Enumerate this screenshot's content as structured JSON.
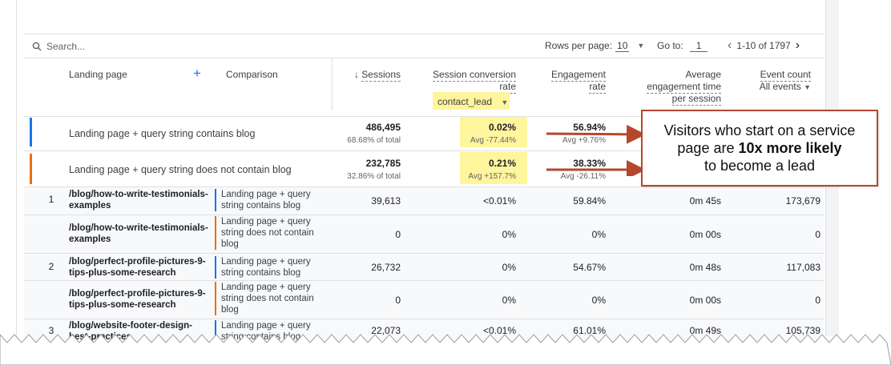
{
  "search": {
    "placeholder": "Search..."
  },
  "pagination": {
    "rows_label": "Rows per page:",
    "rows_value": "10",
    "goto_label": "Go to:",
    "goto_value": "1",
    "range": "1-10 of 1797"
  },
  "headers": {
    "landing_page": "Landing page",
    "add": "+",
    "comparison": "Comparison",
    "sort_arrow": "↓",
    "sessions": "Sessions",
    "conv_rate_line1": "Session conversion",
    "conv_rate_line2": "rate",
    "conv_event": "contact_lead",
    "engagement_line1": "Engagement",
    "engagement_line2": "rate",
    "avg_line1": "Average",
    "avg_line2": "engagement time",
    "avg_line3": "per session",
    "event_count": "Event count",
    "event_filter": "All events"
  },
  "summary_rows": [
    {
      "label": "Landing page + query string contains blog",
      "sessions": "486,495",
      "sessions_sub": "68.68% of total",
      "conv": "0.02%",
      "conv_sub": "Avg -77.44%",
      "eng": "56.94%",
      "eng_sub": "Avg +9.76%",
      "color": "#1a73e8"
    },
    {
      "label": "Landing page + query string does not contain blog",
      "sessions": "232,785",
      "sessions_sub": "32.86% of total",
      "conv": "0.21%",
      "conv_sub": "Avg +157.7%",
      "eng": "38.33%",
      "eng_sub": "Avg -26.11%",
      "color": "#e8710a"
    }
  ],
  "rows": [
    {
      "num": "1",
      "page": "/blog/how-to-write-testimonials-examples",
      "cmp": "Landing page + query string contains blog",
      "sessions": "39,613",
      "conv": "<0.01%",
      "eng": "59.84%",
      "time": "0m 45s",
      "events": "173,679"
    },
    {
      "num": "",
      "page": "/blog/how-to-write-testimonials-examples",
      "cmp": "Landing page + query string does not contain blog",
      "sessions": "0",
      "conv": "0%",
      "eng": "0%",
      "time": "0m 00s",
      "events": "0"
    },
    {
      "num": "2",
      "page": "/blog/perfect-profile-pictures-9-tips-plus-some-research",
      "cmp": "Landing page + query string contains blog",
      "sessions": "26,732",
      "conv": "0%",
      "eng": "54.67%",
      "time": "0m 48s",
      "events": "117,083"
    },
    {
      "num": "",
      "page": "/blog/perfect-profile-pictures-9-tips-plus-some-research",
      "cmp": "Landing page + query string does not contain blog",
      "sessions": "0",
      "conv": "0%",
      "eng": "0%",
      "time": "0m 00s",
      "events": "0"
    },
    {
      "num": "3",
      "page": "/blog/website-footer-design-best-practices",
      "cmp": "Landing page + query string contains blog",
      "sessions": "22,073",
      "conv": "<0.01%",
      "eng": "61.01%",
      "time": "0m 49s",
      "events": "105,739"
    }
  ],
  "callout": {
    "line1": "Visitors who start on a service",
    "line2_pre": "page are",
    "line2_bold": "10x more likely",
    "line3": "to become a lead"
  },
  "colors": {
    "highlight": "#fff59d",
    "callout_border": "#b5472d",
    "arrow": "#b5472d",
    "blue_bar": "#1a73e8",
    "orange_bar": "#e8710a"
  }
}
